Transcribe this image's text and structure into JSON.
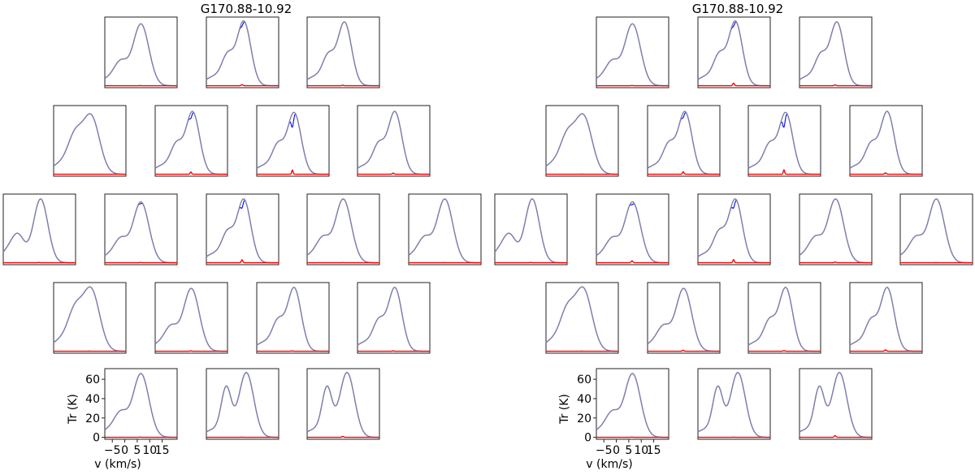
{
  "colors": {
    "observed": "#0000ff",
    "model": "#8080a8",
    "absorption": "#ff0000",
    "frame": "#222222"
  },
  "chart_data": [
    {
      "type": "line",
      "title": "G170.88-10.92",
      "xlabel": "v (km/s)",
      "ylabel": "Tr (K)",
      "xticks": [
        -5,
        0,
        5,
        10,
        15
      ],
      "xtick_labels": [
        "−5",
        "0",
        "5",
        "10",
        "15"
      ],
      "yticks": [
        0,
        20,
        40,
        60
      ],
      "xlim": [
        -8,
        21
      ],
      "ylim": [
        -2,
        71
      ],
      "grid": false,
      "rows": [
        [
          {
            "shape": "A",
            "peak": 64,
            "ar": 0.24,
            "aw": 0.3,
            "dip": 0
          },
          {
            "shape": "B",
            "peak": 67,
            "ar": 1.2,
            "aw": 0.35,
            "dip": 4
          },
          {
            "shape": "B",
            "peak": 66,
            "ar": 0.6,
            "aw": 0.3,
            "dip": 0
          }
        ],
        [
          {
            "shape": "C",
            "peak": 62,
            "ar": 0,
            "aw": 0.3,
            "dip": 0
          },
          {
            "shape": "B",
            "peak": 65,
            "ar": 2.4,
            "aw": 0.3,
            "dip": 6
          },
          {
            "shape": "B",
            "peak": 64,
            "ar": 4.2,
            "aw": 0.28,
            "dip": 14
          },
          {
            "shape": "B",
            "peak": 65,
            "ar": 1.2,
            "aw": 0.35,
            "dip": 0
          }
        ],
        [
          {
            "shape": "D",
            "peak": 66,
            "ar": 0.3,
            "aw": 0.35,
            "dip": 0
          },
          {
            "shape": "A",
            "peak": 63,
            "ar": 0.35,
            "aw": 0.3,
            "dip": 2
          },
          {
            "shape": "B",
            "peak": 66,
            "ar": 3.0,
            "aw": 0.3,
            "dip": 8
          },
          {
            "shape": "A",
            "peak": 66,
            "ar": 0.18,
            "aw": 0.35,
            "dip": 0
          },
          {
            "shape": "A",
            "peak": 66,
            "ar": 0.15,
            "aw": 0.3,
            "dip": 0
          }
        ],
        [
          {
            "shape": "C",
            "peak": 66,
            "ar": 0.15,
            "aw": 0.3,
            "dip": 0
          },
          {
            "shape": "A",
            "peak": 65,
            "ar": 0.45,
            "aw": 0.35,
            "dip": 0
          },
          {
            "shape": "B",
            "peak": 66,
            "ar": 0.45,
            "aw": 0.3,
            "dip": 0
          },
          {
            "shape": "B",
            "peak": 66,
            "ar": 0.5,
            "aw": 0.25,
            "dip": 0
          }
        ],
        [
          {
            "shape": "A",
            "peak": 66,
            "ar": 0.3,
            "aw": 0.3,
            "dip": 0
          },
          {
            "shape": "E",
            "peak": 67,
            "ar": 0.25,
            "aw": 0.3,
            "dip": 0
          },
          {
            "shape": "E",
            "peak": 67,
            "ar": 1.0,
            "aw": 0.35,
            "dip": 0
          }
        ]
      ]
    },
    {
      "type": "line",
      "title": "G170.88-10.92",
      "xlabel": "v (km/s)",
      "ylabel": "Tr (K)",
      "xticks": [
        -5,
        0,
        5,
        10,
        15
      ],
      "xtick_labels": [
        "−5",
        "0",
        "5",
        "10",
        "15"
      ],
      "yticks": [
        0,
        20,
        40,
        60
      ],
      "xlim": [
        -8,
        21
      ],
      "ylim": [
        -2,
        71
      ],
      "grid": false,
      "rows": [
        [
          {
            "shape": "A",
            "peak": 64,
            "ar": 0.3,
            "aw": 0.3,
            "dip": 0
          },
          {
            "shape": "B",
            "peak": 67,
            "ar": 2.6,
            "aw": 0.35,
            "dip": 4
          },
          {
            "shape": "B",
            "peak": 66,
            "ar": 1.0,
            "aw": 0.3,
            "dip": 0
          }
        ],
        [
          {
            "shape": "C",
            "peak": 62,
            "ar": 0.15,
            "aw": 0.3,
            "dip": 0
          },
          {
            "shape": "B",
            "peak": 65,
            "ar": 2.6,
            "aw": 0.3,
            "dip": 5
          },
          {
            "shape": "B",
            "peak": 64,
            "ar": 4.5,
            "aw": 0.28,
            "dip": 14
          },
          {
            "shape": "B",
            "peak": 65,
            "ar": 1.4,
            "aw": 0.35,
            "dip": 0
          }
        ],
        [
          {
            "shape": "D",
            "peak": 66,
            "ar": 0.3,
            "aw": 0.35,
            "dip": 0
          },
          {
            "shape": "A",
            "peak": 63,
            "ar": 2.0,
            "aw": 0.35,
            "dip": 3
          },
          {
            "shape": "B",
            "peak": 66,
            "ar": 3.2,
            "aw": 0.3,
            "dip": 8
          },
          {
            "shape": "A",
            "peak": 66,
            "ar": 0.8,
            "aw": 0.35,
            "dip": 0
          },
          {
            "shape": "A",
            "peak": 66,
            "ar": 0.15,
            "aw": 0.3,
            "dip": 0
          }
        ],
        [
          {
            "shape": "C",
            "peak": 66,
            "ar": 0.15,
            "aw": 0.3,
            "dip": 0
          },
          {
            "shape": "A",
            "peak": 65,
            "ar": 1.0,
            "aw": 0.35,
            "dip": 0
          },
          {
            "shape": "B",
            "peak": 66,
            "ar": 0.8,
            "aw": 0.3,
            "dip": 0
          },
          {
            "shape": "B",
            "peak": 66,
            "ar": 1.4,
            "aw": 0.35,
            "dip": 0
          }
        ],
        [
          {
            "shape": "A",
            "peak": 66,
            "ar": 0.3,
            "aw": 0.3,
            "dip": 0
          },
          {
            "shape": "E",
            "peak": 67,
            "ar": 0.25,
            "aw": 0.3,
            "dip": 0
          },
          {
            "shape": "E",
            "peak": 67,
            "ar": 1.8,
            "aw": 0.35,
            "dip": 0
          }
        ]
      ]
    }
  ]
}
